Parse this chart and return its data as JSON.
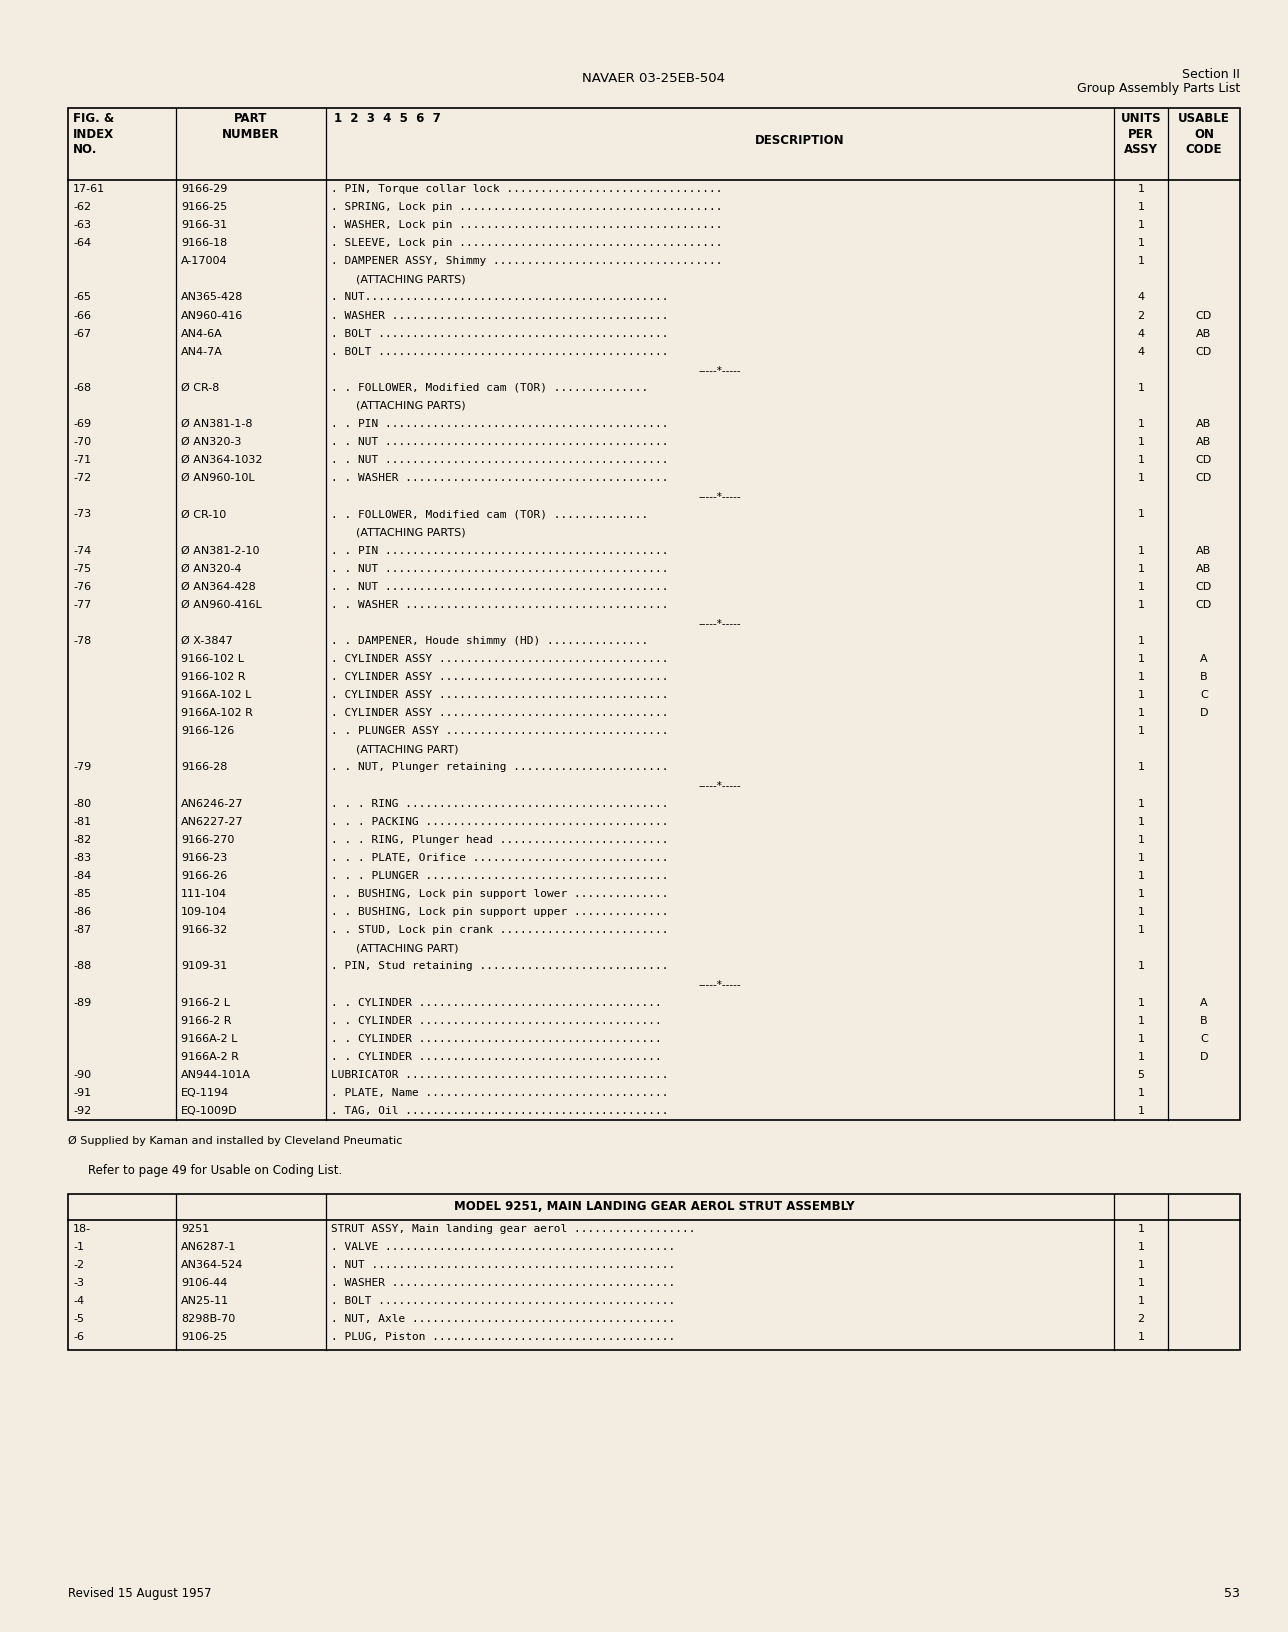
{
  "page_header_center": "NAVAER 03-25EB-504",
  "page_header_right_line1": "Section II",
  "page_header_right_line2": "Group Assembly Parts List",
  "page_number": "53",
  "page_footer_left": "Revised 15 August 1957",
  "bg_color": "#f2ede0",
  "rows": [
    [
      "17-61",
      "9166-29",
      ". PIN, Torque collar lock ................................",
      "1",
      ""
    ],
    [
      "-62",
      "9166-25",
      ". SPRING, Lock pin .......................................",
      "1",
      ""
    ],
    [
      "-63",
      "9166-31",
      ". WASHER, Lock pin .......................................",
      "1",
      ""
    ],
    [
      "-64",
      "9166-18",
      ". SLEEVE, Lock pin .......................................",
      "1",
      ""
    ],
    [
      "",
      "A-17004",
      ". DAMPENER ASSY, Shimmy ..................................",
      "1",
      ""
    ],
    [
      "",
      "",
      "    (ATTACHING PARTS)",
      "",
      ""
    ],
    [
      "-65",
      "AN365-428",
      ". NUT.............................................",
      "4",
      ""
    ],
    [
      "-66",
      "AN960-416",
      ". WASHER .........................................",
      "2",
      "CD"
    ],
    [
      "-67",
      "AN4-6A",
      ". BOLT ...........................................",
      "4",
      "AB"
    ],
    [
      "",
      "AN4-7A",
      ". BOLT ...........................................",
      "4",
      "CD"
    ],
    [
      "",
      "",
      "-----*-----",
      "",
      ""
    ],
    [
      "-68",
      "Ø CR-8",
      ". . FOLLOWER, Modified cam (TOR) ..............",
      "1",
      ""
    ],
    [
      "",
      "",
      "    (ATTACHING PARTS)",
      "",
      ""
    ],
    [
      "-69",
      "Ø AN381-1-8",
      ". . PIN ..........................................",
      "1",
      "AB"
    ],
    [
      "-70",
      "Ø AN320-3",
      ". . NUT ..........................................",
      "1",
      "AB"
    ],
    [
      "-71",
      "Ø AN364-1032",
      ". . NUT ..........................................",
      "1",
      "CD"
    ],
    [
      "-72",
      "Ø AN960-10L",
      ". . WASHER .......................................",
      "1",
      "CD"
    ],
    [
      "",
      "",
      "-----*-----",
      "",
      ""
    ],
    [
      "-73",
      "Ø CR-10",
      ". . FOLLOWER, Modified cam (TOR) ..............",
      "1",
      ""
    ],
    [
      "",
      "",
      "    (ATTACHING PARTS)",
      "",
      ""
    ],
    [
      "-74",
      "Ø AN381-2-10",
      ". . PIN ..........................................",
      "1",
      "AB"
    ],
    [
      "-75",
      "Ø AN320-4",
      ". . NUT ..........................................",
      "1",
      "AB"
    ],
    [
      "-76",
      "Ø AN364-428",
      ". . NUT ..........................................",
      "1",
      "CD"
    ],
    [
      "-77",
      "Ø AN960-416L",
      ". . WASHER .......................................",
      "1",
      "CD"
    ],
    [
      "",
      "",
      "-----*-----",
      "",
      ""
    ],
    [
      "-78",
      "Ø X-3847",
      ". . DAMPENER, Houde shimmy (HD) ...............",
      "1",
      ""
    ],
    [
      "",
      "9166-102 L",
      ". CYLINDER ASSY ..................................",
      "1",
      "A"
    ],
    [
      "",
      "9166-102 R",
      ". CYLINDER ASSY ..................................",
      "1",
      "B"
    ],
    [
      "",
      "9166A-102 L",
      ". CYLINDER ASSY ..................................",
      "1",
      "C"
    ],
    [
      "",
      "9166A-102 R",
      ". CYLINDER ASSY ..................................",
      "1",
      "D"
    ],
    [
      "",
      "9166-126",
      ". . PLUNGER ASSY .................................",
      "1",
      ""
    ],
    [
      "",
      "",
      "    (ATTACHING PART)",
      "",
      ""
    ],
    [
      "-79",
      "9166-28",
      ". . NUT, Plunger retaining .......................",
      "1",
      ""
    ],
    [
      "",
      "",
      "-----*-----",
      "",
      ""
    ],
    [
      "-80",
      "AN6246-27",
      ". . . RING .......................................",
      "1",
      ""
    ],
    [
      "-81",
      "AN6227-27",
      ". . . PACKING ....................................",
      "1",
      ""
    ],
    [
      "-82",
      "9166-270",
      ". . . RING, Plunger head .........................",
      "1",
      ""
    ],
    [
      "-83",
      "9166-23",
      ". . . PLATE, Orifice .............................",
      "1",
      ""
    ],
    [
      "-84",
      "9166-26",
      ". . . PLUNGER ....................................",
      "1",
      ""
    ],
    [
      "-85",
      "111-104",
      ". . BUSHING, Lock pin support lower ..............",
      "1",
      ""
    ],
    [
      "-86",
      "109-104",
      ". . BUSHING, Lock pin support upper ..............",
      "1",
      ""
    ],
    [
      "-87",
      "9166-32",
      ". . STUD, Lock pin crank .........................",
      "1",
      ""
    ],
    [
      "",
      "",
      "    (ATTACHING PART)",
      "",
      ""
    ],
    [
      "-88",
      "9109-31",
      ". PIN, Stud retaining ............................",
      "1",
      ""
    ],
    [
      "",
      "",
      "-----*-----",
      "",
      ""
    ],
    [
      "-89",
      "9166-2 L",
      ". . CYLINDER ....................................",
      "1",
      "A"
    ],
    [
      "",
      "9166-2 R",
      ". . CYLINDER ....................................",
      "1",
      "B"
    ],
    [
      "",
      "9166A-2 L",
      ". . CYLINDER ....................................",
      "1",
      "C"
    ],
    [
      "",
      "9166A-2 R",
      ". . CYLINDER ....................................",
      "1",
      "D"
    ],
    [
      "-90",
      "AN944-101A",
      "LUBRICATOR .......................................",
      "5",
      ""
    ],
    [
      "-91",
      "EQ-1194",
      ". PLATE, Name ....................................",
      "1",
      ""
    ],
    [
      "-92",
      "EQ-1009D",
      ". TAG, Oil .......................................",
      "1",
      ""
    ]
  ],
  "footnote": "Ø Supplied by Kaman and installed by Cleveland Pneumatic",
  "refer_note": "Refer to page 49 for Usable on Coding List.",
  "table2_header": "MODEL 9251, MAIN LANDING GEAR AEROL STRUT ASSEMBLY",
  "table2_rows": [
    [
      "18-",
      "9251",
      "STRUT ASSY, Main landing gear aerol ..................",
      "1",
      ""
    ],
    [
      "-1",
      "AN6287-1",
      ". VALVE ...........................................",
      "1",
      ""
    ],
    [
      "-2",
      "AN364-524",
      ". NUT .............................................",
      "1",
      ""
    ],
    [
      "-3",
      "9106-44",
      ". WASHER ..........................................",
      "1",
      ""
    ],
    [
      "-4",
      "AN25-11",
      ". BOLT ............................................",
      "1",
      ""
    ],
    [
      "-5",
      "8298B-70",
      ". NUT, Axle .......................................",
      "2",
      ""
    ],
    [
      "-6",
      "9106-25",
      ". PLUG, Piston ....................................",
      "1",
      ""
    ]
  ]
}
